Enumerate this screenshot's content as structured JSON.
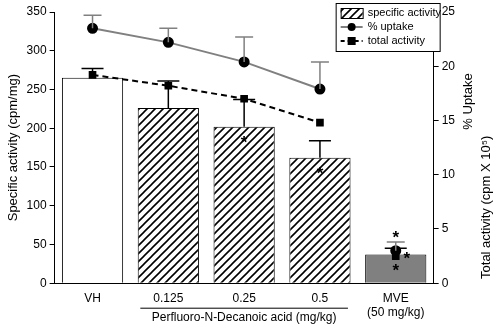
{
  "chart_data": {
    "type": "bar",
    "categories": [
      "VH",
      "0.125",
      "0.25",
      "0.5",
      [
        "MVE",
        "(50 mg/kg)"
      ]
    ],
    "group_label": {
      "text": "Perfluoro-N-Decanoic acid (mg/kg)",
      "from": "0.125",
      "to": "0.5"
    },
    "y_label": "Specific activity (cpm/mg)",
    "y2_labels": [
      "% Uptake",
      "Total activity (cpm X 10⁵)"
    ],
    "ylim": [
      0,
      350
    ],
    "yticks": [
      0,
      50,
      100,
      150,
      200,
      250,
      300,
      350
    ],
    "y2lim": [
      0,
      25
    ],
    "y2ticks": [
      0,
      5,
      10,
      15,
      20,
      25
    ],
    "grid": false,
    "legend": "upper right",
    "series": [
      {
        "name": "specific activity",
        "type": "bar",
        "colors": [
          "#ffffff",
          "#ffffff",
          "#ffffff",
          "#ffffff",
          "#808080"
        ],
        "values": [
          265,
          226,
          202,
          162,
          37
        ],
        "errors": [
          12,
          35,
          35,
          22,
          8
        ]
      },
      {
        "name": "% uptake",
        "type": "line",
        "axis": "y2",
        "color": "#808080",
        "marker": "circle",
        "line_style": "solid",
        "values": [
          23.5,
          22.2,
          20.4,
          17.9,
          3.0
        ],
        "errors": [
          1.2,
          1.3,
          2.3,
          2.5,
          0.8
        ]
      },
      {
        "name": "total activity",
        "type": "line",
        "axis": "y2",
        "color": "#000000",
        "marker": "square",
        "line_style": "dashed",
        "values": [
          19.2,
          18.2,
          17.0,
          14.8,
          2.5
        ]
      }
    ],
    "annotations": [
      {
        "text": "*",
        "category": "0.25",
        "series": "specific activity"
      },
      {
        "text": "*",
        "category": "0.5",
        "series": "specific activity"
      },
      {
        "text": "*",
        "category": [
          "MVE",
          "(50 mg/kg)"
        ],
        "series": "specific activity"
      },
      {
        "text": "*",
        "category": [
          "MVE",
          "(50 mg/kg)"
        ],
        "series": "% uptake"
      },
      {
        "text": "*",
        "category": [
          "MVE",
          "(50 mg/kg)"
        ],
        "series": "total activity"
      }
    ]
  }
}
